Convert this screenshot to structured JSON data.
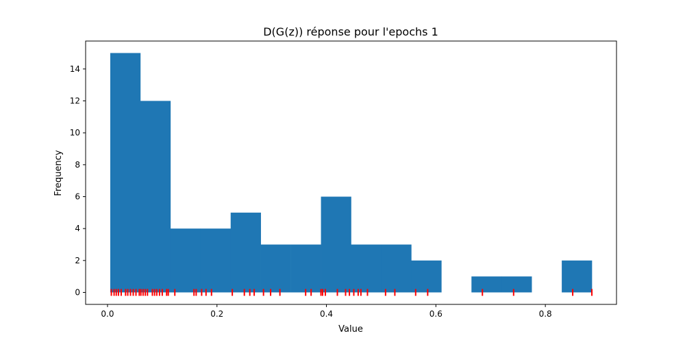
{
  "chart_data": {
    "type": "bar",
    "title": "D(G(z)) réponse pour l'epochs 1",
    "xlabel": "Value",
    "ylabel": "Frequency",
    "xlim": [
      -0.04,
      0.93
    ],
    "ylim": [
      -0.75,
      15.75
    ],
    "xticks": [
      0.0,
      0.2,
      0.4,
      0.6,
      0.8
    ],
    "xtick_labels": [
      "0.0",
      "0.2",
      "0.4",
      "0.6",
      "0.8"
    ],
    "yticks": [
      0,
      2,
      4,
      6,
      8,
      10,
      12,
      14
    ],
    "ytick_labels": [
      "0",
      "2",
      "4",
      "6",
      "8",
      "10",
      "12",
      "14"
    ],
    "grid": false,
    "bar_color": "#1f77b4",
    "rug_color": "#ff0000",
    "bins": [
      {
        "x0": 0.005,
        "x1": 0.06,
        "count": 15
      },
      {
        "x0": 0.06,
        "x1": 0.115,
        "count": 12
      },
      {
        "x0": 0.115,
        "x1": 0.17,
        "count": 4
      },
      {
        "x0": 0.17,
        "x1": 0.225,
        "count": 4
      },
      {
        "x0": 0.225,
        "x1": 0.28,
        "count": 5
      },
      {
        "x0": 0.28,
        "x1": 0.335,
        "count": 3
      },
      {
        "x0": 0.335,
        "x1": 0.39,
        "count": 3
      },
      {
        "x0": 0.39,
        "x1": 0.445,
        "count": 6
      },
      {
        "x0": 0.445,
        "x1": 0.5,
        "count": 3
      },
      {
        "x0": 0.5,
        "x1": 0.555,
        "count": 3
      },
      {
        "x0": 0.555,
        "x1": 0.61,
        "count": 2
      },
      {
        "x0": 0.61,
        "x1": 0.665,
        "count": 0
      },
      {
        "x0": 0.665,
        "x1": 0.72,
        "count": 1
      },
      {
        "x0": 0.72,
        "x1": 0.775,
        "count": 1
      },
      {
        "x0": 0.775,
        "x1": 0.83,
        "count": 0
      },
      {
        "x0": 0.83,
        "x1": 0.885,
        "count": 2
      }
    ],
    "rug_values": [
      0.007,
      0.012,
      0.016,
      0.02,
      0.025,
      0.033,
      0.037,
      0.042,
      0.047,
      0.052,
      0.058,
      0.061,
      0.065,
      0.069,
      0.073,
      0.082,
      0.086,
      0.09,
      0.095,
      0.1,
      0.108,
      0.111,
      0.123,
      0.158,
      0.162,
      0.172,
      0.18,
      0.19,
      0.228,
      0.25,
      0.26,
      0.268,
      0.285,
      0.298,
      0.315,
      0.362,
      0.372,
      0.39,
      0.393,
      0.398,
      0.42,
      0.435,
      0.442,
      0.45,
      0.458,
      0.463,
      0.475,
      0.508,
      0.525,
      0.563,
      0.585,
      0.685,
      0.742,
      0.85,
      0.885
    ]
  }
}
